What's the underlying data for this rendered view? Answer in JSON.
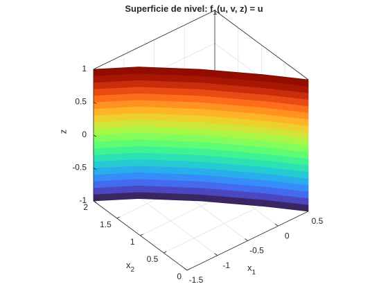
{
  "chart_data": {
    "type": "surface3d",
    "title": {
      "text": "Superficie de nivel: f",
      "subscript": "1",
      "after": "(u, v, z) = u"
    },
    "x1label": {
      "text": "x",
      "subscript": "1"
    },
    "x2label": {
      "text": "x",
      "subscript": "2"
    },
    "zlabel": "z",
    "x1lim": [
      -1.5,
      0.5
    ],
    "x1ticks": [
      -1.5,
      -1,
      -0.5,
      0,
      0.5
    ],
    "x2lim": [
      0,
      2
    ],
    "x2ticks": [
      0,
      0.5,
      1,
      1.5,
      2
    ],
    "zlim": [
      -1,
      1
    ],
    "zticks": [
      -1,
      -0.5,
      0,
      0.5,
      1
    ],
    "grid": true,
    "colormap": "turbo",
    "surface": {
      "curve_x1": [
        -1.5,
        -1.02,
        -0.43,
        0.12,
        0.5
      ],
      "curve_x2": [
        2,
        1.66,
        1.09,
        0.47,
        0
      ],
      "z": [
        -1,
        -0.9,
        -0.8,
        -0.7,
        -0.6,
        -0.5,
        -0.4,
        -0.3,
        -0.2,
        -0.1,
        0,
        0.1,
        0.2,
        0.3,
        0.4,
        0.5,
        0.6,
        0.7,
        0.8,
        0.9,
        1
      ]
    }
  }
}
